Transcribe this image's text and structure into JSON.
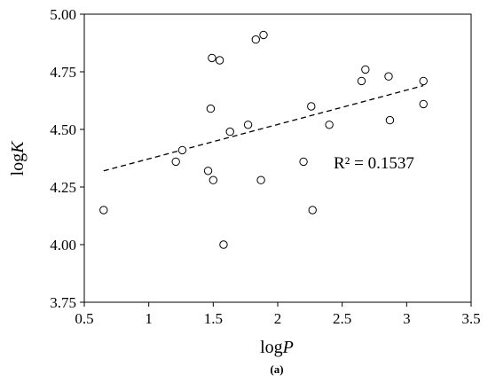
{
  "chart_data": {
    "type": "scatter",
    "xlabel": {
      "base": "log",
      "var": "P"
    },
    "ylabel": {
      "base": "log",
      "var": "K"
    },
    "xlim": [
      0.5,
      3.5
    ],
    "ylim": [
      3.75,
      5.0
    ],
    "xticks": [
      "0.5",
      "1",
      "1.5",
      "2",
      "2.5",
      "3",
      "3.5"
    ],
    "yticks": [
      "3.75",
      "4.00",
      "4.25",
      "4.50",
      "4.75",
      "5.00"
    ],
    "grid": false,
    "marker": "open-circle",
    "series": [
      {
        "points": [
          [
            0.65,
            4.15
          ],
          [
            1.21,
            4.36
          ],
          [
            1.26,
            4.41
          ],
          [
            1.46,
            4.32
          ],
          [
            1.48,
            4.59
          ],
          [
            1.49,
            4.81
          ],
          [
            1.5,
            4.28
          ],
          [
            1.55,
            4.8
          ],
          [
            1.58,
            4.0
          ],
          [
            1.63,
            4.49
          ],
          [
            1.77,
            4.52
          ],
          [
            1.83,
            4.89
          ],
          [
            1.87,
            4.28
          ],
          [
            1.89,
            4.91
          ],
          [
            2.2,
            4.36
          ],
          [
            2.26,
            4.6
          ],
          [
            2.27,
            4.15
          ],
          [
            2.4,
            4.52
          ],
          [
            2.65,
            4.71
          ],
          [
            2.68,
            4.76
          ],
          [
            2.86,
            4.73
          ],
          [
            2.87,
            4.54
          ],
          [
            3.13,
            4.71
          ],
          [
            3.13,
            4.61
          ]
        ]
      }
    ],
    "trendline": {
      "type": "linear",
      "style": "dashed",
      "x": [
        0.65,
        3.13
      ],
      "y": [
        4.32,
        4.69
      ]
    },
    "annotation": "R² = 0.1537",
    "caption": "(a)"
  }
}
